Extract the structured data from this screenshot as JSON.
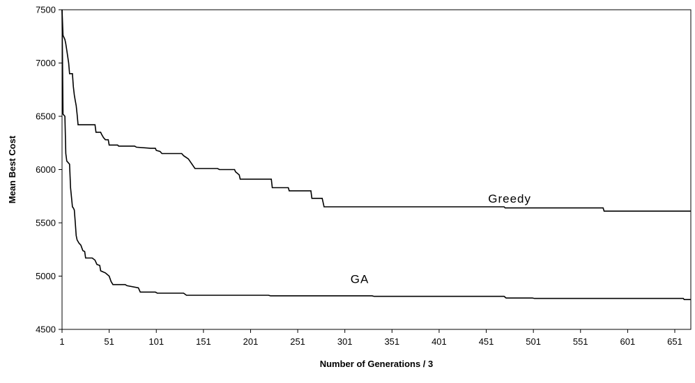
{
  "chart_data": {
    "type": "line",
    "title": "",
    "xlabel": "Number of Generations / 3",
    "ylabel": "Mean Best Cost",
    "xlim": [
      1,
      668
    ],
    "ylim": [
      4500,
      7500
    ],
    "grid": false,
    "legend": "none",
    "x_ticks": [
      1,
      51,
      101,
      151,
      201,
      251,
      301,
      351,
      401,
      451,
      501,
      551,
      601,
      651
    ],
    "y_ticks": [
      4500,
      5000,
      5500,
      6000,
      6500,
      7000,
      7500
    ],
    "series": [
      {
        "name": "Greedy",
        "color": "#000000",
        "points": [
          [
            1,
            7500
          ],
          [
            2,
            7260
          ],
          [
            4,
            7220
          ],
          [
            5,
            7180
          ],
          [
            6,
            7120
          ],
          [
            8,
            7000
          ],
          [
            9,
            6900
          ],
          [
            12,
            6900
          ],
          [
            13,
            6780
          ],
          [
            14,
            6700
          ],
          [
            15,
            6650
          ],
          [
            16,
            6600
          ],
          [
            17,
            6520
          ],
          [
            18,
            6420
          ],
          [
            36,
            6420
          ],
          [
            37,
            6350
          ],
          [
            42,
            6350
          ],
          [
            43,
            6330
          ],
          [
            45,
            6300
          ],
          [
            47,
            6280
          ],
          [
            50,
            6280
          ],
          [
            51,
            6230
          ],
          [
            60,
            6230
          ],
          [
            61,
            6220
          ],
          [
            78,
            6220
          ],
          [
            80,
            6210
          ],
          [
            95,
            6200
          ],
          [
            100,
            6200
          ],
          [
            101,
            6180
          ],
          [
            105,
            6170
          ],
          [
            107,
            6150
          ],
          [
            128,
            6150
          ],
          [
            130,
            6130
          ],
          [
            135,
            6100
          ],
          [
            142,
            6010
          ],
          [
            166,
            6010
          ],
          [
            168,
            6000
          ],
          [
            184,
            6000
          ],
          [
            185,
            5980
          ],
          [
            189,
            5950
          ],
          [
            190,
            5910
          ],
          [
            223,
            5910
          ],
          [
            224,
            5830
          ],
          [
            241,
            5830
          ],
          [
            242,
            5800
          ],
          [
            265,
            5800
          ],
          [
            266,
            5730
          ],
          [
            277,
            5730
          ],
          [
            279,
            5650
          ],
          [
            470,
            5650
          ],
          [
            471,
            5640
          ],
          [
            575,
            5640
          ],
          [
            576,
            5610
          ],
          [
            668,
            5610
          ]
        ],
        "label": "Greedy",
        "label_pos": [
          453,
          5690
        ]
      },
      {
        "name": "GA",
        "color": "#000000",
        "points": [
          [
            1,
            7500
          ],
          [
            2,
            6520
          ],
          [
            4,
            6500
          ],
          [
            5,
            6150
          ],
          [
            6,
            6080
          ],
          [
            8,
            6060
          ],
          [
            9,
            6050
          ],
          [
            10,
            5830
          ],
          [
            12,
            5650
          ],
          [
            13,
            5640
          ],
          [
            14,
            5620
          ],
          [
            15,
            5510
          ],
          [
            16,
            5380
          ],
          [
            17,
            5340
          ],
          [
            19,
            5310
          ],
          [
            21,
            5290
          ],
          [
            23,
            5240
          ],
          [
            25,
            5230
          ],
          [
            26,
            5170
          ],
          [
            33,
            5170
          ],
          [
            36,
            5150
          ],
          [
            38,
            5110
          ],
          [
            41,
            5100
          ],
          [
            42,
            5050
          ],
          [
            47,
            5030
          ],
          [
            51,
            5000
          ],
          [
            53,
            4950
          ],
          [
            55,
            4920
          ],
          [
            68,
            4920
          ],
          [
            70,
            4910
          ],
          [
            82,
            4890
          ],
          [
            84,
            4850
          ],
          [
            100,
            4850
          ],
          [
            102,
            4840
          ],
          [
            130,
            4840
          ],
          [
            133,
            4820
          ],
          [
            220,
            4820
          ],
          [
            222,
            4815
          ],
          [
            330,
            4815
          ],
          [
            332,
            4810
          ],
          [
            470,
            4810
          ],
          [
            472,
            4795
          ],
          [
            500,
            4795
          ],
          [
            502,
            4790
          ],
          [
            660,
            4790
          ],
          [
            661,
            4780
          ],
          [
            668,
            4780
          ]
        ],
        "label": "GA",
        "label_pos": [
          307,
          4935
        ]
      }
    ]
  }
}
